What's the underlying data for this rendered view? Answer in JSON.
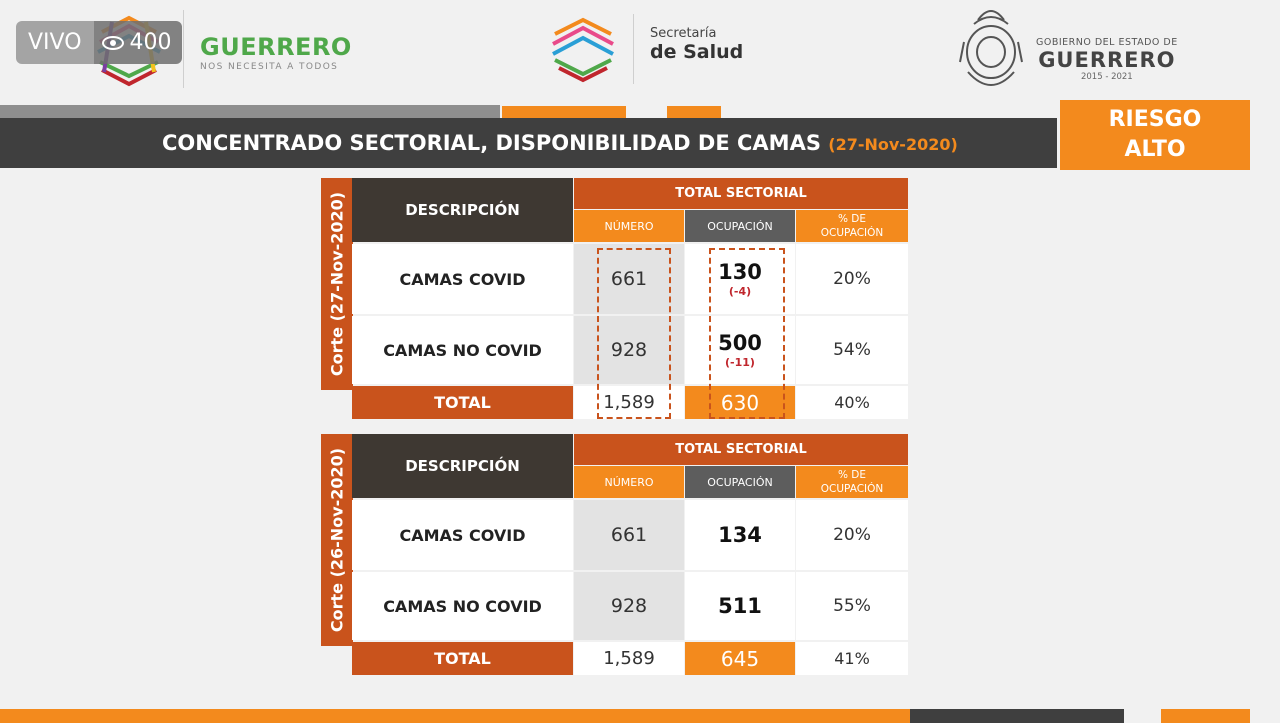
{
  "live": {
    "label": "VIVO",
    "viewers": "400"
  },
  "header": {
    "guerrero_title": "GUERRERO",
    "guerrero_sub": "NOS NECESITA A TODOS",
    "salud_line1": "Secretaría",
    "salud_line2": "de Salud",
    "gob_line1": "GOBIERNO DEL ESTADO DE",
    "gob_line2": "GUERRERO",
    "gob_years": "2015 - 2021"
  },
  "title": {
    "text": "CONCENTRADO SECTORIAL, DISPONIBILIDAD DE CAMAS",
    "date": "(27-Nov-2020)"
  },
  "risk": {
    "line1": "RIESGO",
    "line2": "ALTO"
  },
  "headers": {
    "descripcion": "DESCRIPCIÓN",
    "total_sectorial": "TOTAL SECTORIAL",
    "numero": "NÚMERO",
    "ocupacion": "OCUPACIÓN",
    "pct_line1": "% DE",
    "pct_line2": "OCUPACIÓN"
  },
  "tables": [
    {
      "corte": "Corte (27-Nov-2020)",
      "rows": [
        {
          "label": "CAMAS COVID",
          "numero": "661",
          "ocupacion": "130",
          "delta": "(-4)",
          "pct": "20%"
        },
        {
          "label": "CAMAS NO COVID",
          "numero": "928",
          "ocupacion": "500",
          "delta": "(-11)",
          "pct": "54%"
        }
      ],
      "total": {
        "label": "TOTAL",
        "numero": "1,589",
        "ocupacion": "630",
        "pct": "40%"
      }
    },
    {
      "corte": "Corte (26-Nov-2020)",
      "rows": [
        {
          "label": "CAMAS COVID",
          "numero": "661",
          "ocupacion": "134",
          "pct": "20%"
        },
        {
          "label": "CAMAS NO COVID",
          "numero": "928",
          "ocupacion": "511",
          "pct": "55%"
        }
      ],
      "total": {
        "label": "TOTAL",
        "numero": "1,589",
        "ocupacion": "645",
        "pct": "41%"
      }
    }
  ],
  "colors": {
    "orange": "#f38a1d",
    "rust": "#c9531c",
    "dark": "#3f3f3f",
    "delta_red": "#c0262d",
    "green": "#4fa84a"
  }
}
